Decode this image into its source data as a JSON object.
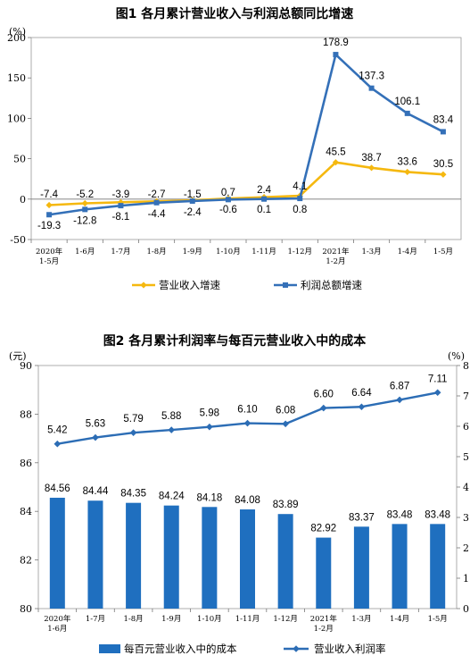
{
  "chart_data": [
    {
      "type": "line",
      "title": "图1  各月累计营业收入与利润总额同比增速",
      "ylabel": "(%)",
      "ylim": [
        -50,
        200
      ],
      "yticks": [
        -50,
        0,
        50,
        100,
        150,
        200
      ],
      "categories": [
        "2020年 1-5月",
        "1-6月",
        "1-7月",
        "1-8月",
        "1-9月",
        "1-10月",
        "1-11月",
        "1-12月",
        "2021年 1-2月",
        "1-3月",
        "1-4月",
        "1-5月"
      ],
      "series": [
        {
          "name": "营业收入增速",
          "color": "#F5B80F",
          "marker": "diamond",
          "values": [
            -7.4,
            -5.2,
            -3.9,
            -2.7,
            -1.5,
            0.7,
            2.4,
            4.1,
            45.5,
            38.7,
            33.6,
            30.5
          ],
          "labels": [
            "-7.4",
            "-5.2",
            "-3.9",
            "-2.7",
            "-1.5",
            "0.7",
            "2.4",
            "4.1",
            "45.5",
            "38.7",
            "33.6",
            "30.5"
          ]
        },
        {
          "name": "利润总额增速",
          "color": "#3470B8",
          "marker": "square",
          "values": [
            -19.3,
            -12.8,
            -8.1,
            -4.4,
            -2.4,
            -0.6,
            0.1,
            0.8,
            178.9,
            137.3,
            106.1,
            83.4
          ],
          "labels": [
            "-19.3",
            "-12.8",
            "-8.1",
            "-4.4",
            "-2.4",
            "-0.6",
            "0.1",
            "0.8",
            "178.9",
            "137.3",
            "106.1",
            "83.4"
          ]
        }
      ],
      "legend": "bottom"
    },
    {
      "type": "bar",
      "title": "图2  各月累计利润率与每百元营业收入中的成本",
      "ylabel": "(元)",
      "y2label": "(%)",
      "ylim": [
        80,
        90
      ],
      "yticks": [
        80,
        82,
        84,
        86,
        88,
        90
      ],
      "y2lim": [
        0,
        8
      ],
      "y2ticks": [
        0,
        1,
        2,
        3,
        4,
        5,
        6,
        7,
        8
      ],
      "categories": [
        "2020年 1-6月",
        "1-7月",
        "1-8月",
        "1-9月",
        "1-10月",
        "1-11月",
        "1-12月",
        "2021年 1-2月",
        "1-3月",
        "1-4月",
        "1-5月"
      ],
      "series": [
        {
          "name": "每百元营业收入中的成本",
          "type": "bar",
          "axis": "left",
          "color": "#1F6FBF",
          "values": [
            84.56,
            84.44,
            84.35,
            84.24,
            84.18,
            84.08,
            83.89,
            82.92,
            83.37,
            83.48,
            83.48
          ],
          "labels": [
            "84.56",
            "84.44",
            "84.35",
            "84.24",
            "84.18",
            "84.08",
            "83.89",
            "82.92",
            "83.37",
            "83.48",
            "83.48"
          ]
        },
        {
          "name": "营业收入利润率",
          "type": "line",
          "axis": "right",
          "color": "#2C6DB5",
          "marker": "diamond",
          "values": [
            5.42,
            5.63,
            5.79,
            5.88,
            5.98,
            6.1,
            6.08,
            6.6,
            6.64,
            6.87,
            7.11
          ],
          "labels": [
            "5.42",
            "5.63",
            "5.79",
            "5.88",
            "5.98",
            "6.10",
            "6.08",
            "6.60",
            "6.64",
            "6.87",
            "7.11"
          ]
        }
      ],
      "legend": "bottom"
    }
  ]
}
